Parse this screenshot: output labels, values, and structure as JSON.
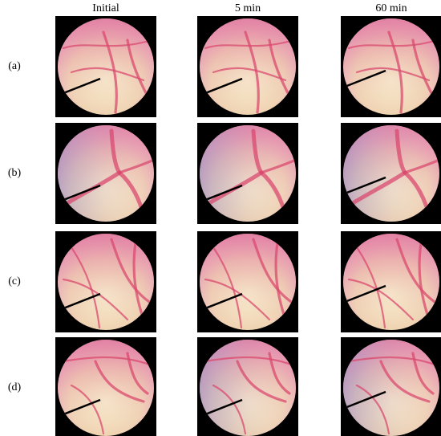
{
  "column_headers": [
    "Initial",
    "5 min",
    "60 min"
  ],
  "row_labels": [
    "(a)",
    "(b)",
    "(c)",
    "(d)"
  ]
}
